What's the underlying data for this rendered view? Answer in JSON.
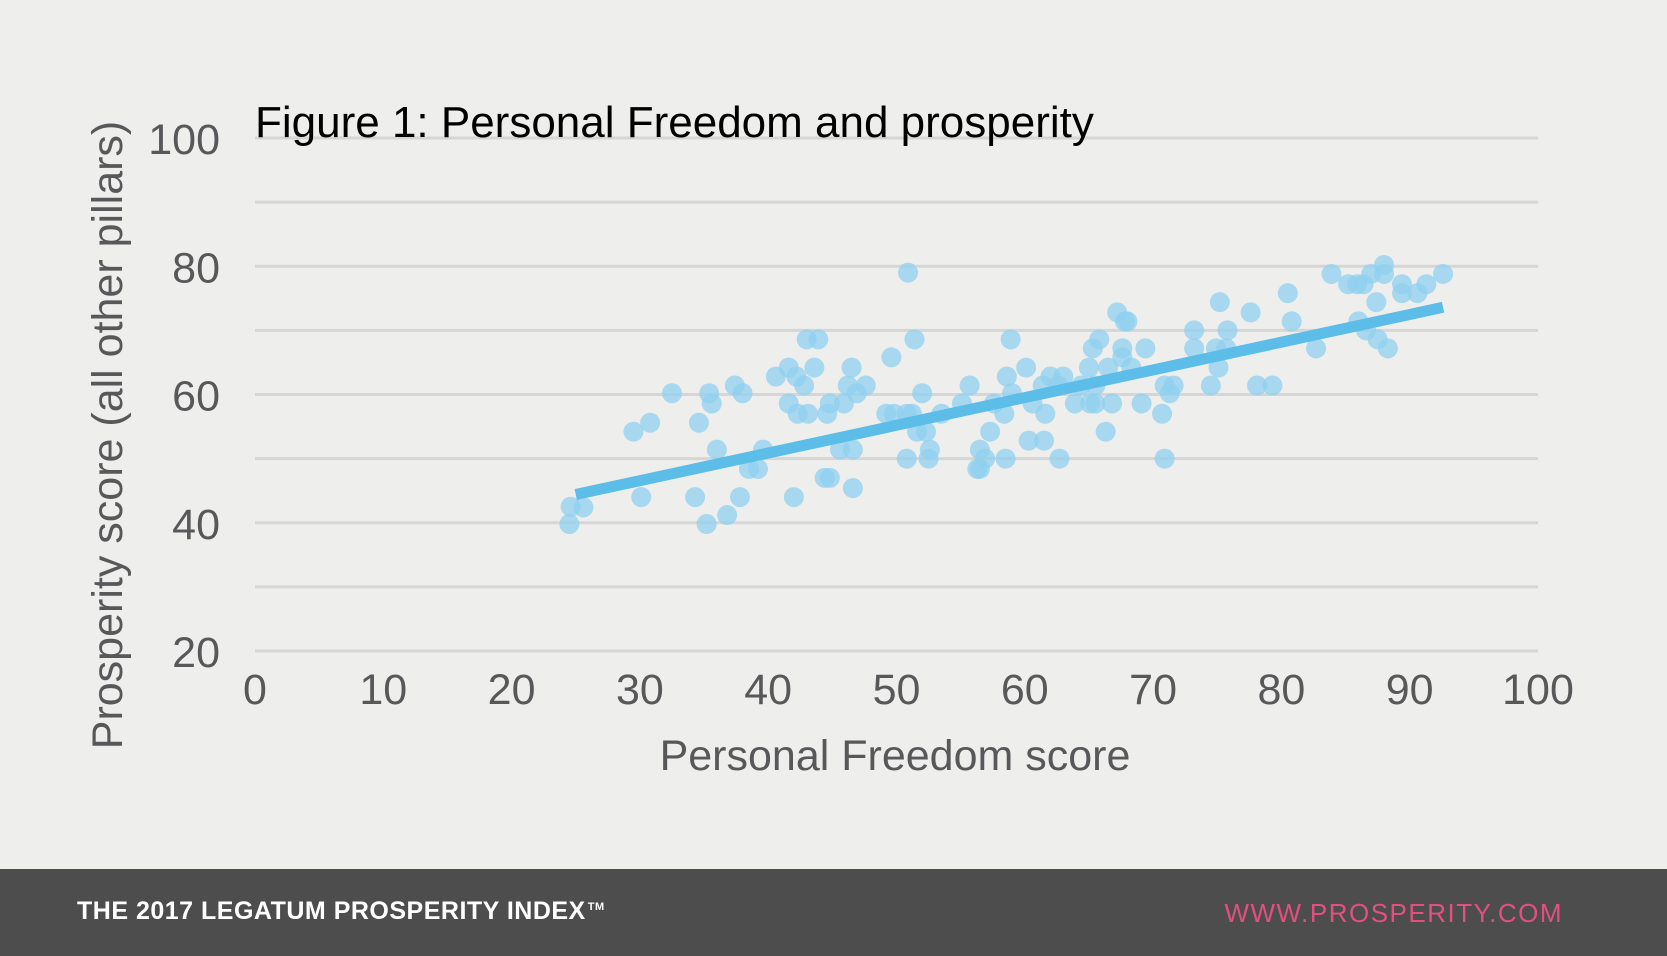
{
  "chart_data": {
    "type": "scatter",
    "title": "Figure 1: Personal Freedom and prosperity",
    "xlabel": "Personal Freedom score",
    "ylabel": "Prosperity score (all other pillars)",
    "xlim": [
      0,
      100
    ],
    "ylim": [
      20,
      100
    ],
    "x_ticks": [
      "0",
      "10",
      "20",
      "30",
      "40",
      "50",
      "60",
      "70",
      "80",
      "90",
      "100"
    ],
    "y_ticks": [
      "20",
      "40",
      "60",
      "80",
      "100"
    ],
    "grid": true,
    "grid_step": 10,
    "colors": {
      "points": "#8fd0ef",
      "trend": "#5bbde8",
      "grid": "#d6d6d6",
      "text": "#58585a"
    },
    "points": [
      [
        24.5,
        39.8
      ],
      [
        24.6,
        42.5
      ],
      [
        25.6,
        42.4
      ],
      [
        29.5,
        54.2
      ],
      [
        30.1,
        44.0
      ],
      [
        30.8,
        55.6
      ],
      [
        32.5,
        60.2
      ],
      [
        34.3,
        44.0
      ],
      [
        34.6,
        55.6
      ],
      [
        35.2,
        39.8
      ],
      [
        35.4,
        60.2
      ],
      [
        35.6,
        58.6
      ],
      [
        36.0,
        51.4
      ],
      [
        36.8,
        41.2
      ],
      [
        37.4,
        61.4
      ],
      [
        37.8,
        44.0
      ],
      [
        38.0,
        60.2
      ],
      [
        38.5,
        48.4
      ],
      [
        39.2,
        48.4
      ],
      [
        39.6,
        51.4
      ],
      [
        40.6,
        62.8
      ],
      [
        41.6,
        64.2
      ],
      [
        41.6,
        58.6
      ],
      [
        42.0,
        44.0
      ],
      [
        42.2,
        62.8
      ],
      [
        42.3,
        57.0
      ],
      [
        42.8,
        61.4
      ],
      [
        43.0,
        68.6
      ],
      [
        43.1,
        57.0
      ],
      [
        43.6,
        64.2
      ],
      [
        43.9,
        68.6
      ],
      [
        44.4,
        47.0
      ],
      [
        44.6,
        57.0
      ],
      [
        44.8,
        58.6
      ],
      [
        44.8,
        47.0
      ],
      [
        45.6,
        51.4
      ],
      [
        45.9,
        58.6
      ],
      [
        46.2,
        61.4
      ],
      [
        46.6,
        51.4
      ],
      [
        46.5,
        64.2
      ],
      [
        46.6,
        45.4
      ],
      [
        46.9,
        60.2
      ],
      [
        47.6,
        61.4
      ],
      [
        49.2,
        57.0
      ],
      [
        49.6,
        65.8
      ],
      [
        49.8,
        57.0
      ],
      [
        50.8,
        57.0
      ],
      [
        50.8,
        50.0
      ],
      [
        50.9,
        79.0
      ],
      [
        51.2,
        57.0
      ],
      [
        51.4,
        68.6
      ],
      [
        51.6,
        54.2
      ],
      [
        52.0,
        60.2
      ],
      [
        52.3,
        54.2
      ],
      [
        52.5,
        50.0
      ],
      [
        52.6,
        51.4
      ],
      [
        53.5,
        57.0
      ],
      [
        55.1,
        58.6
      ],
      [
        55.7,
        61.4
      ],
      [
        56.3,
        48.4
      ],
      [
        56.5,
        51.4
      ],
      [
        56.5,
        48.4
      ],
      [
        56.9,
        50.0
      ],
      [
        57.3,
        54.2
      ],
      [
        57.6,
        58.6
      ],
      [
        58.4,
        57.0
      ],
      [
        58.5,
        50.0
      ],
      [
        58.6,
        62.8
      ],
      [
        58.9,
        68.6
      ],
      [
        59.0,
        60.2
      ],
      [
        60.1,
        64.2
      ],
      [
        60.3,
        52.8
      ],
      [
        60.6,
        58.6
      ],
      [
        61.4,
        61.4
      ],
      [
        61.5,
        52.8
      ],
      [
        61.6,
        57.0
      ],
      [
        62.0,
        62.8
      ],
      [
        62.6,
        61.4
      ],
      [
        62.7,
        50.0
      ],
      [
        63.0,
        62.8
      ],
      [
        63.9,
        58.6
      ],
      [
        64.4,
        61.4
      ],
      [
        65.0,
        64.2
      ],
      [
        65.1,
        58.6
      ],
      [
        65.3,
        67.2
      ],
      [
        65.5,
        61.4
      ],
      [
        65.5,
        58.6
      ],
      [
        65.8,
        68.6
      ],
      [
        66.3,
        54.2
      ],
      [
        66.5,
        64.2
      ],
      [
        66.8,
        58.6
      ],
      [
        67.2,
        72.8
      ],
      [
        67.6,
        67.2
      ],
      [
        67.6,
        65.8
      ],
      [
        67.8,
        71.4
      ],
      [
        68.0,
        71.4
      ],
      [
        68.3,
        64.2
      ],
      [
        69.1,
        58.6
      ],
      [
        69.4,
        67.2
      ],
      [
        70.7,
        57.0
      ],
      [
        70.9,
        61.4
      ],
      [
        70.9,
        50.0
      ],
      [
        71.3,
        60.2
      ],
      [
        71.6,
        61.4
      ],
      [
        73.2,
        70.0
      ],
      [
        73.2,
        67.2
      ],
      [
        74.5,
        61.4
      ],
      [
        74.9,
        67.2
      ],
      [
        75.1,
        64.2
      ],
      [
        75.2,
        74.4
      ],
      [
        75.7,
        67.2
      ],
      [
        75.8,
        70.0
      ],
      [
        77.6,
        72.8
      ],
      [
        78.1,
        61.4
      ],
      [
        79.3,
        61.4
      ],
      [
        80.5,
        75.8
      ],
      [
        80.8,
        71.4
      ],
      [
        82.7,
        67.2
      ],
      [
        83.9,
        78.8
      ],
      [
        85.2,
        77.2
      ],
      [
        85.9,
        77.2
      ],
      [
        86.0,
        71.4
      ],
      [
        86.4,
        77.2
      ],
      [
        86.6,
        70.0
      ],
      [
        87.0,
        78.8
      ],
      [
        87.4,
        74.4
      ],
      [
        87.5,
        68.6
      ],
      [
        88.0,
        80.2
      ],
      [
        88.0,
        78.8
      ],
      [
        88.3,
        67.2
      ],
      [
        89.4,
        77.2
      ],
      [
        89.4,
        75.8
      ],
      [
        90.6,
        75.8
      ],
      [
        91.3,
        77.2
      ],
      [
        92.6,
        78.8
      ]
    ],
    "trendline": {
      "x": [
        25,
        92.6
      ],
      "y": [
        44.4,
        73.6
      ]
    }
  },
  "footer": {
    "brand": "THE 2017 LEGATUM PROSPERITY INDEX",
    "trademark": "TM",
    "site": "WWW.PROSPERITY.COM"
  }
}
